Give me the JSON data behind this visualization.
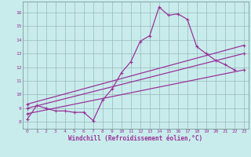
{
  "xlabel": "Windchill (Refroidissement éolien,°C)",
  "bg_color": "#c8ecec",
  "line_color": "#993399",
  "grid_color": "#9ab8b8",
  "border_color": "#7a9a9a",
  "xlim": [
    -0.5,
    23.5
  ],
  "ylim": [
    7.5,
    16.8
  ],
  "xticks": [
    0,
    1,
    2,
    3,
    4,
    5,
    6,
    7,
    8,
    9,
    10,
    11,
    12,
    13,
    14,
    15,
    16,
    17,
    18,
    19,
    20,
    21,
    22,
    23
  ],
  "yticks": [
    8,
    9,
    10,
    11,
    12,
    13,
    14,
    15,
    16
  ],
  "series1_x": [
    0,
    1,
    2,
    3,
    4,
    5,
    6,
    7,
    8,
    9,
    10,
    11,
    12,
    13,
    14,
    15,
    16,
    17,
    18,
    19,
    20,
    21,
    22
  ],
  "series1_y": [
    8.2,
    9.2,
    9.0,
    8.8,
    8.8,
    8.7,
    8.7,
    8.1,
    9.6,
    10.4,
    11.6,
    12.4,
    13.9,
    14.3,
    16.4,
    15.8,
    15.9,
    15.5,
    13.5,
    13.0,
    12.5,
    12.2,
    11.8
  ],
  "line2_x": [
    0,
    23
  ],
  "line2_y": [
    8.6,
    11.8
  ],
  "line3_x": [
    0,
    23
  ],
  "line3_y": [
    9.0,
    13.0
  ],
  "line4_x": [
    0,
    23
  ],
  "line4_y": [
    9.3,
    13.6
  ]
}
